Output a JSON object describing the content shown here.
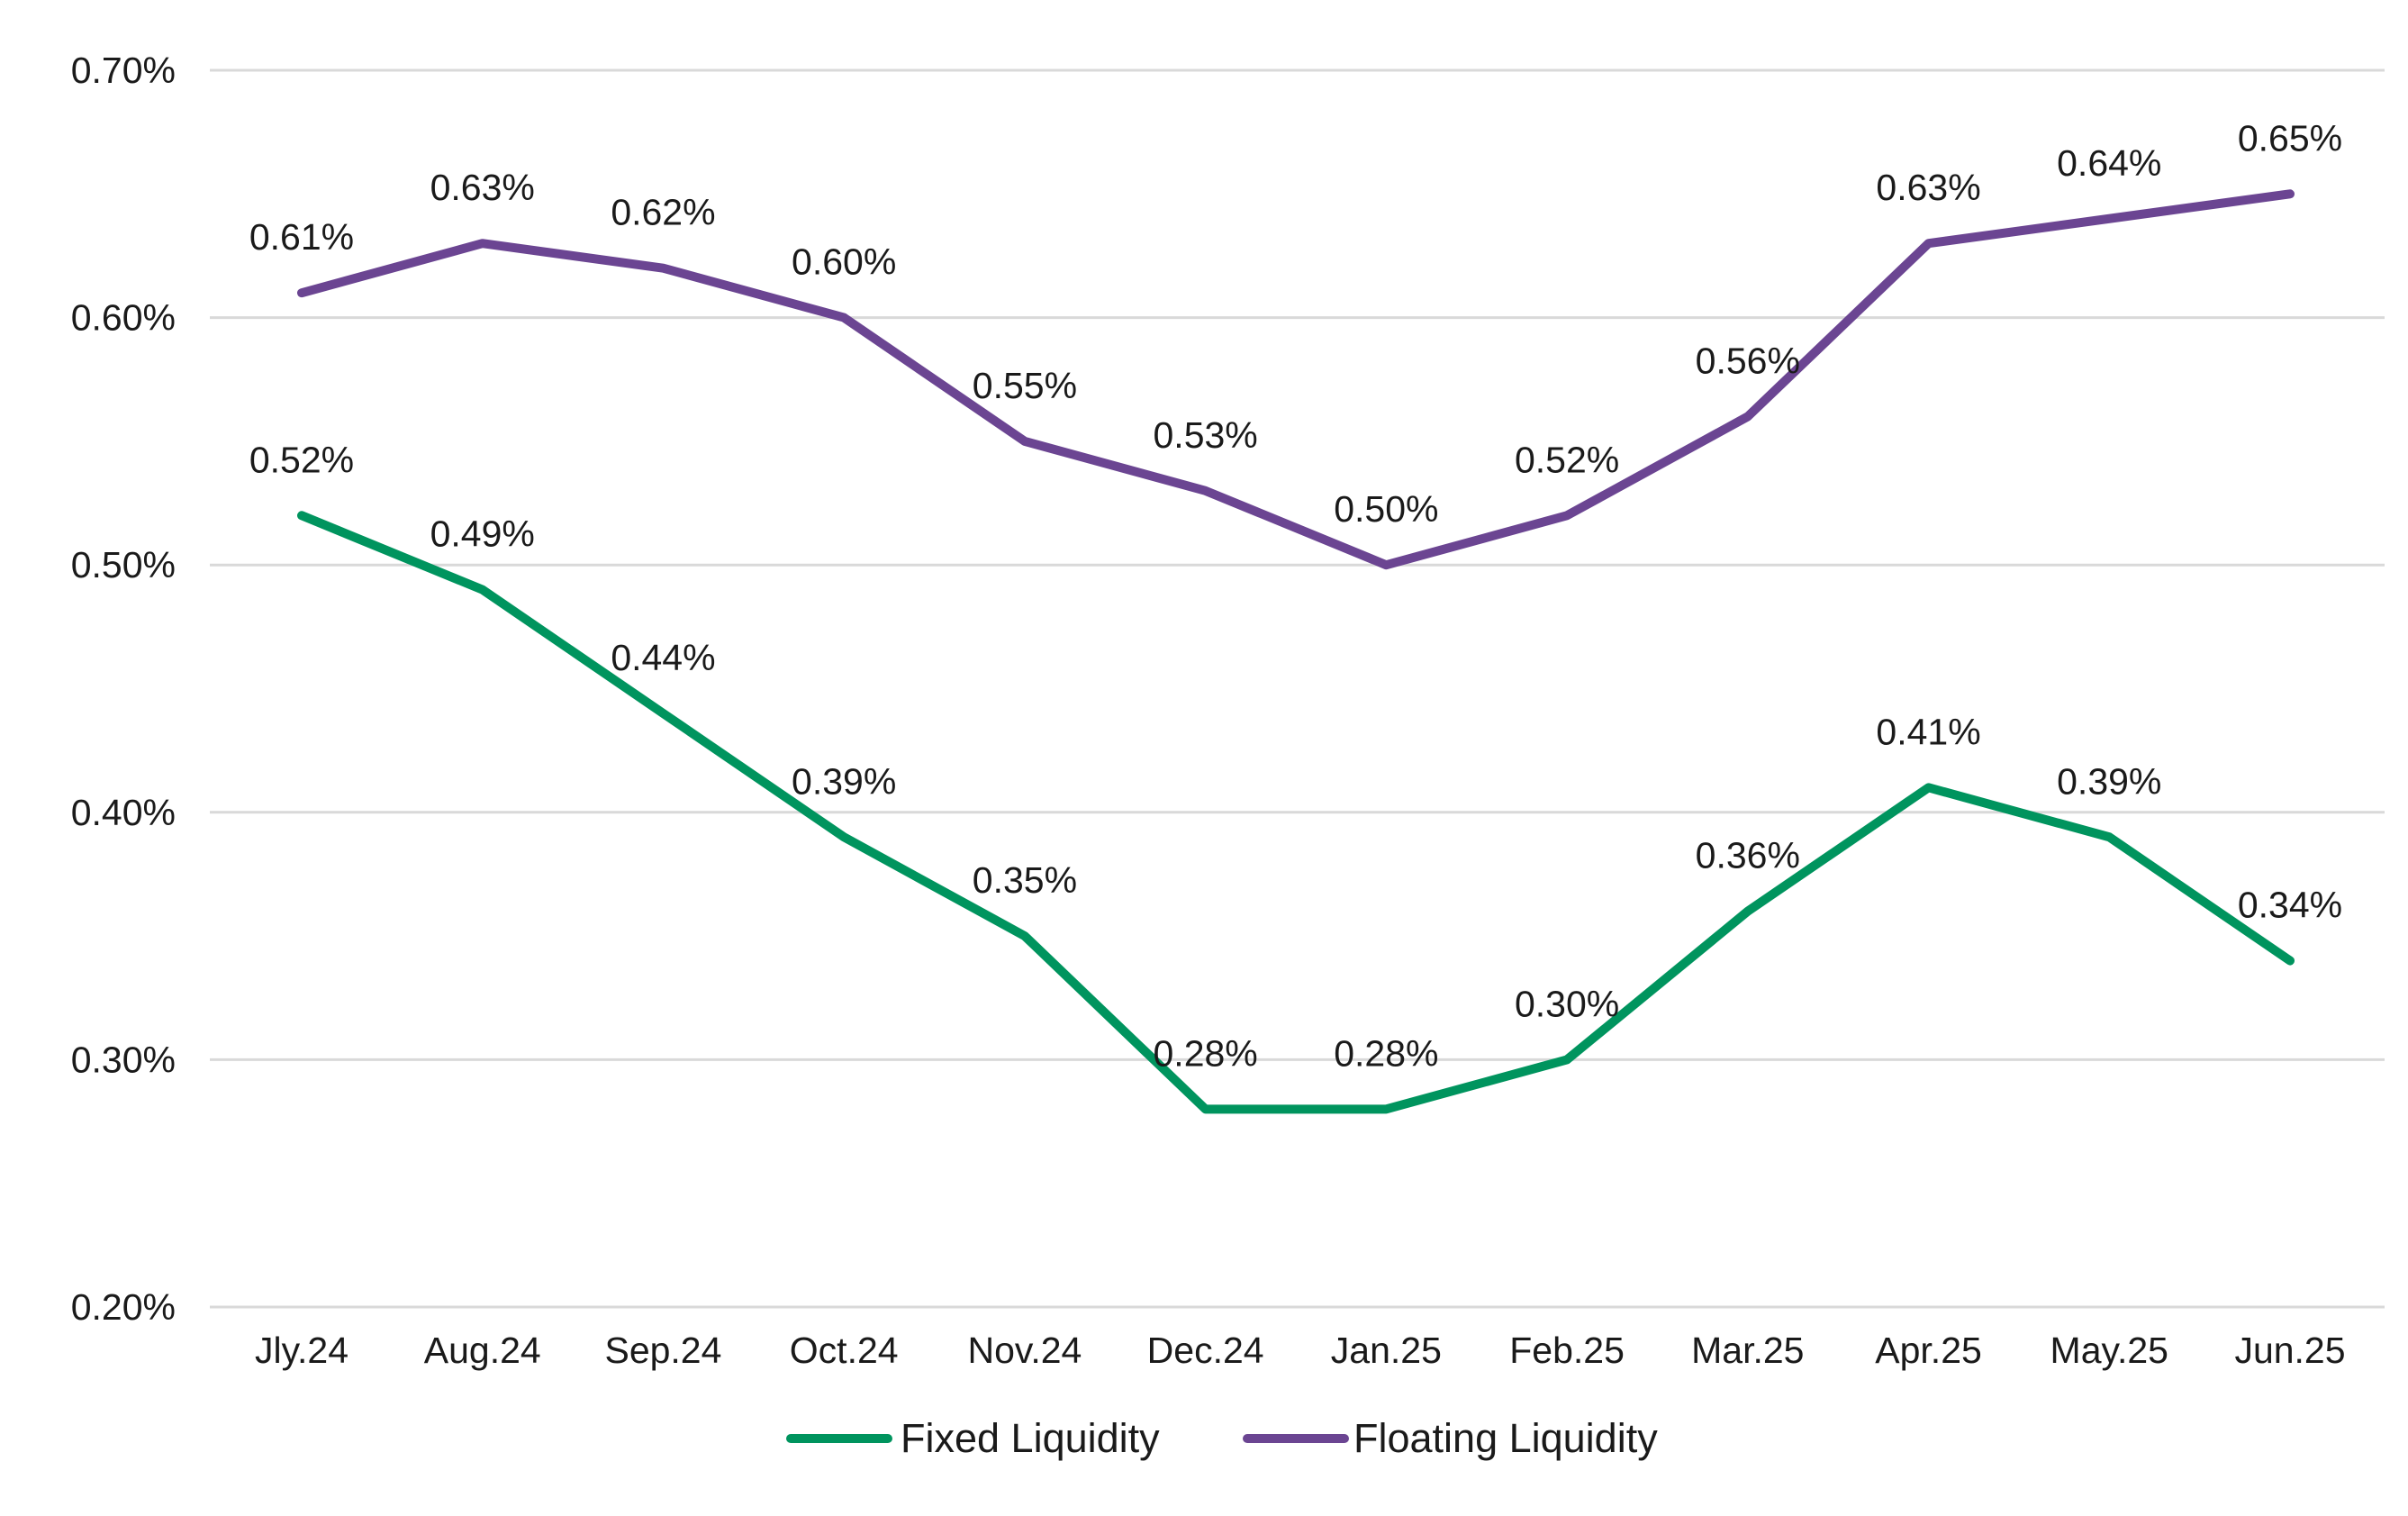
{
  "chart_data": {
    "type": "line",
    "categories": [
      "Jly.24",
      "Aug.24",
      "Sep.24",
      "Oct.24",
      "Nov.24",
      "Dec.24",
      "Jan.25",
      "Feb.25",
      "Mar.25",
      "Apr.25",
      "May.25",
      "Jun.25"
    ],
    "series": [
      {
        "name": "Fixed Liquidity",
        "color": "#00945E",
        "values": [
          0.52,
          0.49,
          0.44,
          0.39,
          0.35,
          0.28,
          0.28,
          0.3,
          0.36,
          0.41,
          0.39,
          0.34
        ],
        "labels": [
          "0.52%",
          "0.49%",
          "0.44%",
          "0.39%",
          "0.35%",
          "0.28%",
          "0.28%",
          "0.30%",
          "0.36%",
          "0.41%",
          "0.39%",
          "0.34%"
        ]
      },
      {
        "name": "Floating Liquidity",
        "color": "#6B4592",
        "values": [
          0.61,
          0.63,
          0.62,
          0.6,
          0.55,
          0.53,
          0.5,
          0.52,
          0.56,
          0.63,
          0.64,
          0.65
        ],
        "labels": [
          "0.61%",
          "0.63%",
          "0.62%",
          "0.60%",
          "0.55%",
          "0.53%",
          "0.50%",
          "0.52%",
          "0.56%",
          "0.63%",
          "0.64%",
          "0.65%"
        ]
      }
    ],
    "y_ticks": [
      0.2,
      0.3,
      0.4,
      0.5,
      0.6,
      0.7
    ],
    "y_tick_labels": [
      "0.20%",
      "0.30%",
      "0.40%",
      "0.50%",
      "0.60%",
      "0.70%"
    ],
    "ylim": [
      0.2,
      0.7
    ],
    "title": "",
    "xlabel": "",
    "ylabel": "",
    "grid": true,
    "legend_position": "bottom-center",
    "gridline_color": "#D9D9D9"
  }
}
